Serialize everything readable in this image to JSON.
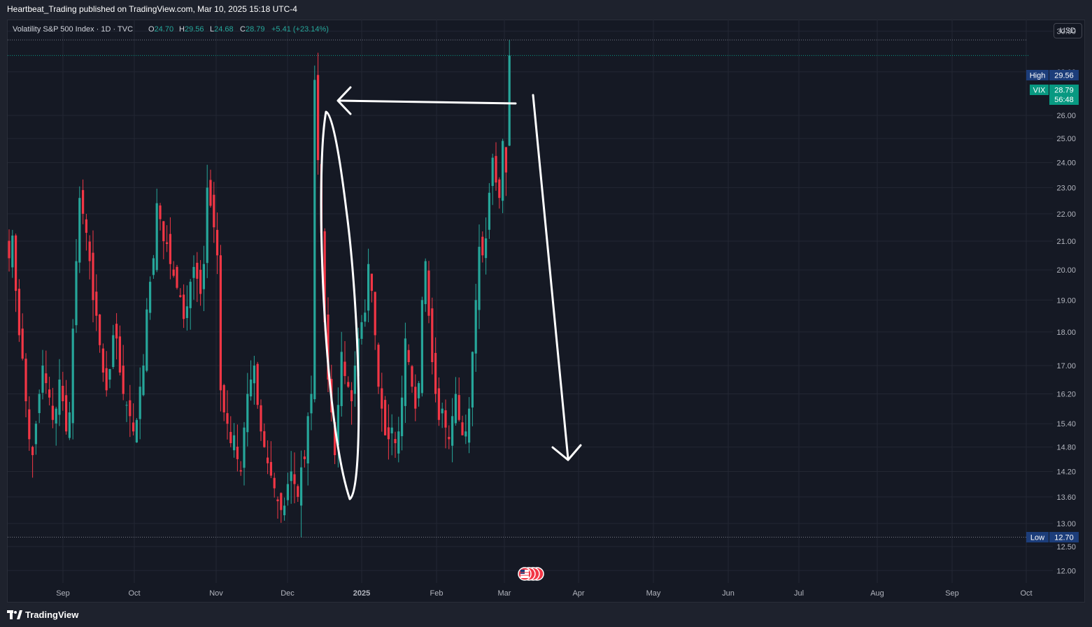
{
  "publish_line": "Heartbeat_Trading published on TradingView.com, Mar 10, 2025 15:18 UTC-4",
  "footer": {
    "brand": "TradingView"
  },
  "legend": {
    "name": "Volatility S&P 500 Index · 1D · TVC",
    "o_label": "O",
    "o_value": "24.70",
    "h_label": "H",
    "h_value": "29.56",
    "l_label": "L",
    "l_value": "24.68",
    "c_label": "C",
    "c_value": "28.79",
    "change": "+5.41 (+23.14%)"
  },
  "currency_button": "USD",
  "badges": {
    "high_label": "High",
    "high_value": "29.56",
    "vix_label": "VIX",
    "vix_value": "28.79",
    "countdown": "56:48",
    "low_label": "Low",
    "low_value": "12.70"
  },
  "colors": {
    "up": "#26a69a",
    "down": "#f23645",
    "background": "#151924",
    "axis_text": "#b2b5be",
    "annotation": "#ffffff",
    "badge_blue": "#1c3d7a",
    "badge_green": "#089981"
  },
  "chart_data": {
    "type": "candlestick",
    "scale": "log",
    "grid": true,
    "x_tick_labels": [
      "Sep",
      "Oct",
      "Nov",
      "Dec",
      "2025",
      "Feb",
      "Mar",
      "Apr",
      "May",
      "Jun",
      "Jul",
      "Aug",
      "Sep",
      "Oct"
    ],
    "y_tick_labels": [
      "30.00",
      "28.00",
      "26.00",
      "25.00",
      "24.00",
      "23.00",
      "22.00",
      "21.00",
      "20.00",
      "19.00",
      "18.00",
      "17.00",
      "16.20",
      "15.40",
      "14.80",
      "14.20",
      "13.60",
      "13.00",
      "12.50",
      "12.00"
    ],
    "y_range": [
      11.75,
      30.6
    ],
    "last_close": 28.79,
    "period_high": 29.56,
    "period_low": 12.7,
    "series": [
      {
        "name": "VIX",
        "closes": [
          20.4,
          21.2,
          19.3,
          17.9,
          17.2,
          16.0,
          15.0,
          14.6,
          15.4,
          16.2,
          17.0,
          16.5,
          16.1,
          15.5,
          15.8,
          16.6,
          16.0,
          15.2,
          15.7,
          18.1,
          20.3,
          22.6,
          22.0,
          21.3,
          20.3,
          19.0,
          18.5,
          17.6,
          16.8,
          16.3,
          16.9,
          17.9,
          17.8,
          16.8,
          16.2,
          15.9,
          15.6,
          15.2,
          15.5,
          16.4,
          17.0,
          18.7,
          19.6,
          20.4,
          22.4,
          21.8,
          21.0,
          20.9,
          20.2,
          19.8,
          19.4,
          19.1,
          18.4,
          18.8,
          19.6,
          20.1,
          19.7,
          19.2,
          20.2,
          23.0,
          22.3,
          21.5,
          20.5,
          16.3,
          15.7,
          15.4,
          14.9,
          15.1,
          14.5,
          14.2,
          15.3,
          16.2,
          16.6,
          17.0,
          15.9,
          15.2,
          14.8,
          14.4,
          14.1,
          13.8,
          13.5,
          13.3,
          13.4,
          13.9,
          14.2,
          13.9,
          13.6,
          14.3,
          14.5,
          15.6,
          16.2,
          27.62,
          24.1,
          21.3,
          18.3,
          16.6,
          15.7,
          14.6,
          15.9,
          17.4,
          16.7,
          16.4,
          16.0,
          17.0,
          17.8,
          18.3,
          18.6,
          20.2,
          19.3,
          17.9,
          16.4,
          15.8,
          15.1,
          15.0,
          15.3,
          14.9,
          15.2,
          16.1,
          17.8,
          17.1,
          16.4,
          15.8,
          16.5,
          19.0,
          20.3,
          18.5,
          17.1,
          16.2,
          15.5,
          15.8,
          15.3,
          15.0,
          15.6,
          16.2,
          15.5,
          15.1,
          15.2,
          15.8,
          17.4,
          19.0,
          20.8,
          20.5,
          21.1,
          22.8,
          24.2,
          23.2,
          22.6,
          24.9,
          23.6,
          28.79
        ]
      }
    ]
  }
}
